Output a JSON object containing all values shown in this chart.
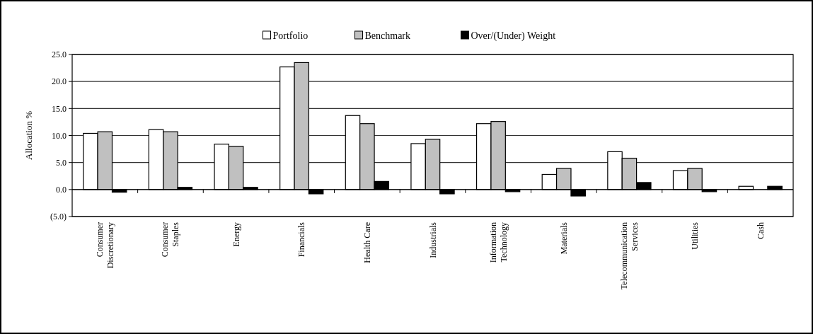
{
  "chart_data": {
    "type": "bar",
    "ylabel": "Allocation %",
    "categories": [
      "Consumer Discretionary",
      "Consumer Staples",
      "Energy",
      "Financials",
      "Health Care",
      "Industrials",
      "Information Technology",
      "Materials",
      "Telecommunication Services",
      "Utilities",
      "Cash"
    ],
    "series": [
      {
        "name": "Portfolio",
        "color": "#ffffff",
        "values": [
          10.4,
          11.1,
          8.4,
          22.7,
          13.7,
          8.5,
          12.2,
          2.8,
          7.0,
          3.5,
          0.6
        ]
      },
      {
        "name": "Benchmark",
        "color": "#c0c0c0",
        "values": [
          10.7,
          10.7,
          8.0,
          23.5,
          12.2,
          9.3,
          12.6,
          3.9,
          5.8,
          3.9,
          0
        ]
      },
      {
        "name": "Over/(Under) Weight",
        "color": "#000000",
        "values": [
          -0.5,
          0.4,
          0.4,
          -0.8,
          1.5,
          -0.8,
          -0.4,
          -1.2,
          1.3,
          -0.4,
          0.6
        ]
      }
    ],
    "ylim": [
      -5,
      25
    ],
    "yticks": [
      {
        "value": -5,
        "label": "(5.0)"
      },
      {
        "value": 0,
        "label": "0.0"
      },
      {
        "value": 5,
        "label": "5.0"
      },
      {
        "value": 10,
        "label": "10.0"
      },
      {
        "value": 15,
        "label": "15.0"
      },
      {
        "value": 20,
        "label": "20.0"
      },
      {
        "value": 25,
        "label": "25.0"
      }
    ],
    "grid": "y",
    "legend": "top"
  }
}
